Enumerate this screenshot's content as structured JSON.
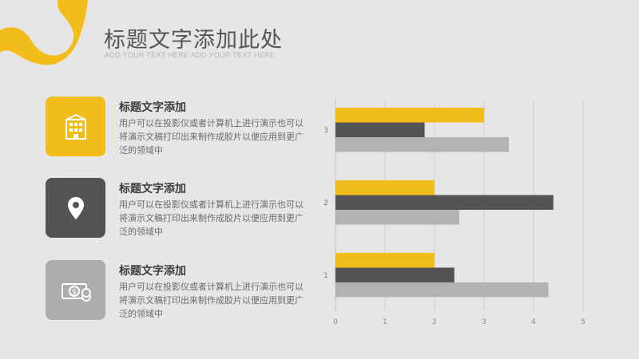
{
  "slide": {
    "title": "标题文字添加此处",
    "subtitle": "ADD YOUR TEXT HERE ADD YOUR TEXT HERE"
  },
  "items": [
    {
      "heading": "标题文字添加",
      "text": "用户可以在投影仪或者计算机上进行演示也可以将演示文稿打印出来制作成胶片以便应用到更广泛的领域中",
      "icon": "building-icon",
      "color": "#f2bc1a"
    },
    {
      "heading": "标题文字添加",
      "text": "用户可以在投影仪或者计算机上进行演示也可以将演示文稿打印出来制作成胶片以便应用到更广泛的领域中",
      "icon": "location-pin-icon",
      "color": "#545454"
    },
    {
      "heading": "标题文字添加",
      "text": "用户可以在投影仪或者计算机上进行演示也可以将演示文稿打印出来制作成胶片以便应用到更广泛的领域中",
      "icon": "coins-icon",
      "color": "#adadad"
    }
  ],
  "colors": {
    "accent": "#f2bc1a",
    "dark": "#545454",
    "light": "#b3b3b3",
    "background": "#e6e6e6"
  },
  "chart_data": {
    "type": "bar",
    "orientation": "horizontal",
    "categories": [
      "1",
      "2",
      "3"
    ],
    "series": [
      {
        "values": [
          2.0,
          2.0,
          3.0
        ],
        "color": "#f2bc1a"
      },
      {
        "values": [
          2.4,
          4.4,
          1.8
        ],
        "color": "#545454"
      },
      {
        "values": [
          4.3,
          2.5,
          3.5
        ],
        "color": "#b3b3b3"
      }
    ],
    "xlim": [
      0,
      5
    ],
    "x_ticks": [
      "0",
      "1",
      "2",
      "3",
      "4",
      "5"
    ],
    "grid": "vertical",
    "legend": "none",
    "title": "",
    "xlabel": "",
    "ylabel": ""
  }
}
